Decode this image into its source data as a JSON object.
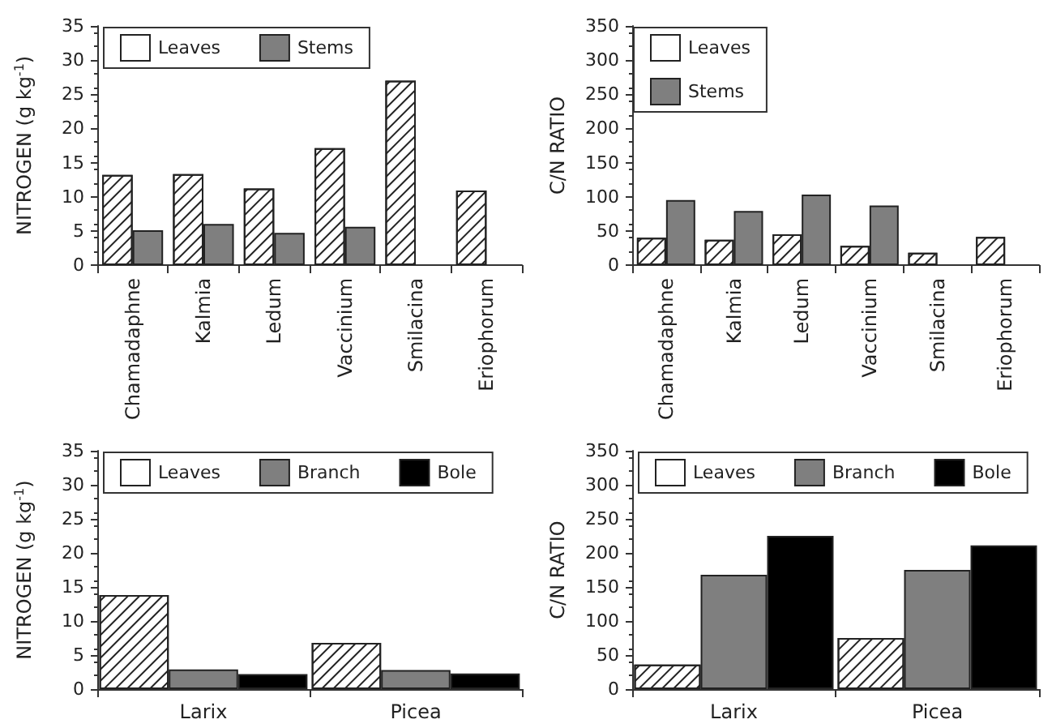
{
  "chart_data": [
    {
      "type": "bar",
      "categories": [
        "Chamadaphne",
        "Kalmia",
        "Ledum",
        "Vaccinium",
        "Smilacina",
        "Eriophorum"
      ],
      "ylabel": "NITROGEN (g kg$^{-1}$)",
      "ylim": [
        0,
        35
      ],
      "yticks": [
        0,
        5,
        10,
        15,
        20,
        25,
        30,
        35
      ],
      "legend": "top",
      "grid": false,
      "series": [
        {
          "name": "Leaves",
          "color": "#ffffff",
          "values": [
            13.2,
            13.3,
            11.2,
            17.1,
            27,
            10.9
          ]
        },
        {
          "name": "Stems",
          "color": "#7f7f7f",
          "values": [
            5.1,
            6,
            4.7,
            5.6,
            null,
            null
          ]
        }
      ]
    },
    {
      "type": "bar",
      "categories": [
        "Chamadaphne",
        "Kalmia",
        "Ledum",
        "Vaccinium",
        "Smilacina",
        "Eriophorum"
      ],
      "ylabel": "C/N RATIO",
      "ylim": [
        0,
        350
      ],
      "yticks": [
        0,
        50,
        100,
        150,
        200,
        250,
        300,
        350
      ],
      "legend": "top left",
      "grid": false,
      "series": [
        {
          "name": "Leaves",
          "color": "#ffffff",
          "values": [
            40,
            37,
            45,
            28,
            18,
            41
          ]
        },
        {
          "name": "Stems",
          "color": "#7f7f7f",
          "values": [
            95,
            79,
            103,
            87,
            null,
            null
          ]
        }
      ]
    },
    {
      "type": "bar",
      "categories": [
        "Larix",
        "Picea"
      ],
      "ylabel": "NITROGEN (g kg$^{-1}$)",
      "ylim": [
        0,
        35
      ],
      "yticks": [
        0,
        5,
        10,
        15,
        20,
        25,
        30,
        35
      ],
      "legend": "top",
      "grid": false,
      "series": [
        {
          "name": "Leaves",
          "color": "#ffffff",
          "values": [
            13.8,
            6.8
          ]
        },
        {
          "name": "Branch",
          "color": "#7f7f7f",
          "values": [
            2.9,
            2.8
          ]
        },
        {
          "name": "Bole",
          "color": "#000000",
          "values": [
            2.2,
            2.3
          ]
        }
      ]
    },
    {
      "type": "bar",
      "categories": [
        "Larix",
        "Picea"
      ],
      "ylabel": "C/N RATIO",
      "ylim": [
        0,
        350
      ],
      "yticks": [
        0,
        50,
        100,
        150,
        200,
        250,
        300,
        350
      ],
      "legend": "top",
      "grid": false,
      "series": [
        {
          "name": "Leaves",
          "color": "#ffffff",
          "values": [
            36,
            75
          ]
        },
        {
          "name": "Branch",
          "color": "#7f7f7f",
          "values": [
            168,
            175
          ]
        },
        {
          "name": "Bole",
          "color": "#000000",
          "values": [
            225,
            211
          ]
        }
      ]
    }
  ]
}
